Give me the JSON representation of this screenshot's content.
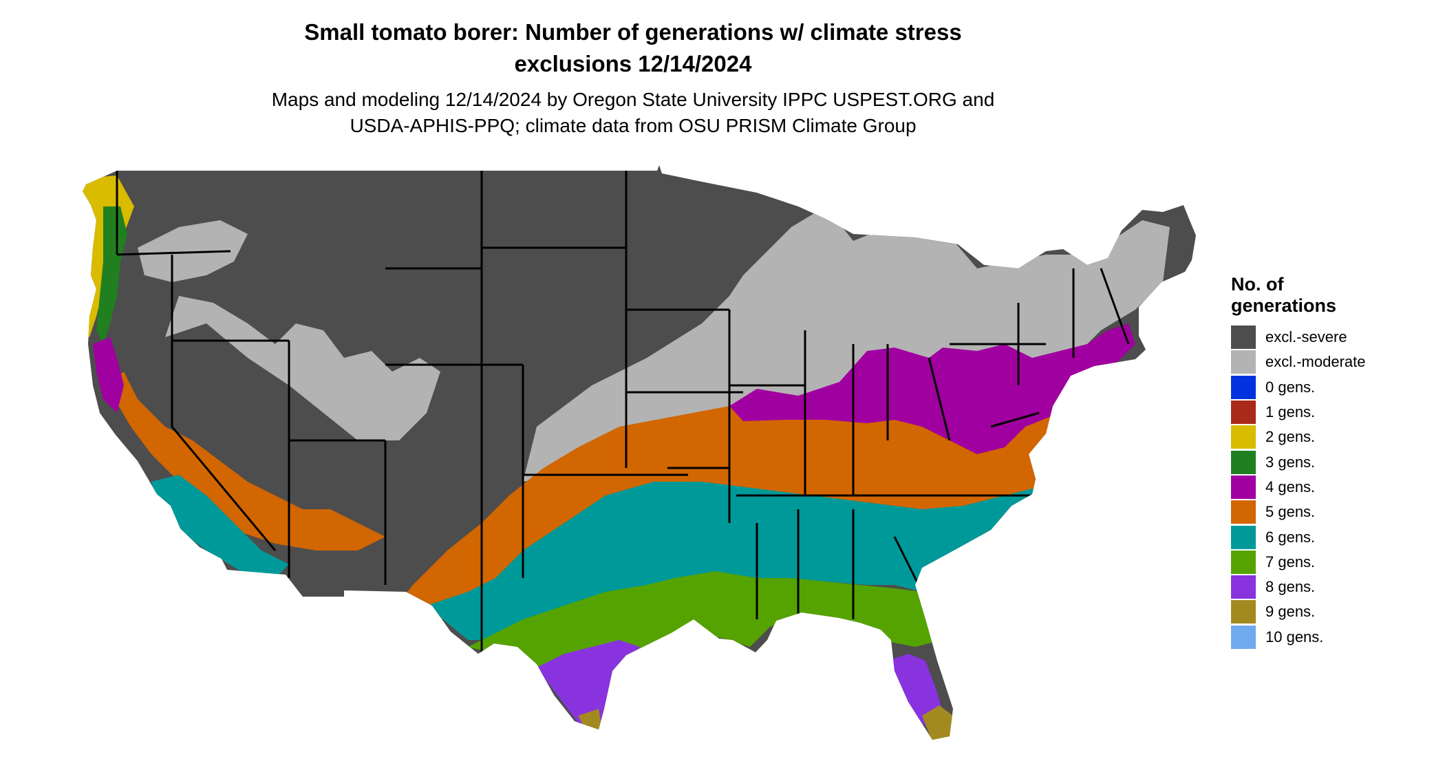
{
  "title_line1": "Small tomato borer: Number of generations w/ climate stress",
  "title_line2": "exclusions 12/14/2024",
  "subtitle_line1": "Maps and modeling 12/14/2024 by Oregon State University IPPC USPEST.ORG and",
  "subtitle_line2": "USDA-APHIS-PPQ; climate data from OSU PRISM Climate Group",
  "legend": {
    "title_line1": "No. of",
    "title_line2": "generations",
    "items": [
      {
        "label": "excl.-severe",
        "color": "#4d4d4d"
      },
      {
        "label": "excl.-moderate",
        "color": "#b3b3b3"
      },
      {
        "label": "0 gens.",
        "color": "#0033dd"
      },
      {
        "label": "1 gens.",
        "color": "#aa2a1a"
      },
      {
        "label": "2 gens.",
        "color": "#d9bb00"
      },
      {
        "label": "3 gens.",
        "color": "#208020"
      },
      {
        "label": "4 gens.",
        "color": "#a000a0"
      },
      {
        "label": "5 gens.",
        "color": "#d26600"
      },
      {
        "label": "6 gens.",
        "color": "#009999"
      },
      {
        "label": "7 gens.",
        "color": "#55a300"
      },
      {
        "label": "8 gens.",
        "color": "#8833dd"
      },
      {
        "label": "9 gens.",
        "color": "#a38a20"
      },
      {
        "label": "10 gens.",
        "color": "#70aaee"
      }
    ]
  }
}
